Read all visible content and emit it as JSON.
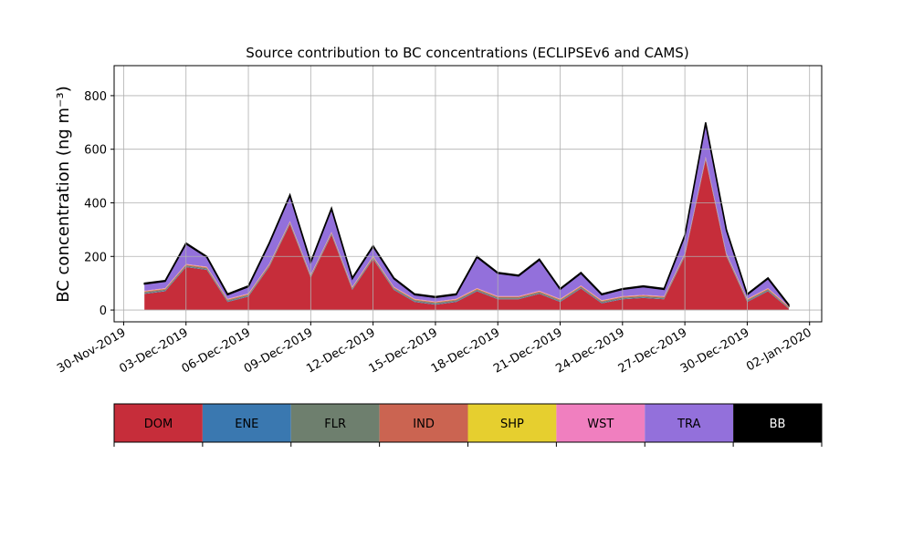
{
  "chart_data": {
    "type": "stacked_area",
    "title": "Source contribution to BC concentrations (ECLIPSEv6 and CAMS)",
    "y_label": "BC concentration (ng m⁻³)",
    "x": [
      "2019-12-01",
      "2019-12-02",
      "2019-12-03",
      "2019-12-04",
      "2019-12-05",
      "2019-12-06",
      "2019-12-07",
      "2019-12-08",
      "2019-12-09",
      "2019-12-10",
      "2019-12-11",
      "2019-12-12",
      "2019-12-13",
      "2019-12-14",
      "2019-12-15",
      "2019-12-16",
      "2019-12-17",
      "2019-12-18",
      "2019-12-19",
      "2019-12-20",
      "2019-12-21",
      "2019-12-22",
      "2019-12-23",
      "2019-12-24",
      "2019-12-25",
      "2019-12-26",
      "2019-12-27",
      "2019-12-28",
      "2019-12-29",
      "2019-12-30",
      "2019-12-31",
      "2020-01-01"
    ],
    "series": [
      {
        "name": "DOM",
        "color": "#c62d3a",
        "values": [
          60,
          70,
          160,
          150,
          30,
          50,
          160,
          320,
          120,
          280,
          75,
          190,
          75,
          30,
          20,
          30,
          70,
          40,
          40,
          60,
          30,
          80,
          25,
          40,
          45,
          40,
          200,
          560,
          200,
          30,
          70,
          5
        ]
      },
      {
        "name": "ENE",
        "color": "#3a78b0",
        "values": [
          2,
          2,
          2,
          2,
          2,
          2,
          2,
          2,
          2,
          2,
          2,
          2,
          2,
          2,
          2,
          2,
          2,
          2,
          2,
          2,
          2,
          2,
          2,
          2,
          2,
          2,
          2,
          2,
          2,
          2,
          2,
          1
        ]
      },
      {
        "name": "FLR",
        "color": "#6e7f6e",
        "values": [
          4,
          4,
          4,
          4,
          4,
          4,
          4,
          4,
          4,
          4,
          4,
          4,
          4,
          4,
          4,
          4,
          4,
          4,
          4,
          4,
          4,
          4,
          4,
          4,
          4,
          4,
          4,
          4,
          4,
          4,
          4,
          3
        ]
      },
      {
        "name": "IND",
        "color": "#cb6451",
        "values": [
          3,
          3,
          3,
          3,
          3,
          3,
          3,
          3,
          3,
          3,
          3,
          3,
          3,
          3,
          3,
          3,
          3,
          3,
          3,
          3,
          3,
          3,
          3,
          3,
          3,
          3,
          3,
          3,
          3,
          3,
          3,
          3
        ]
      },
      {
        "name": "SHP",
        "color": "#e6cf2f",
        "values": [
          1,
          1,
          1,
          1,
          1,
          1,
          1,
          1,
          1,
          1,
          1,
          1,
          1,
          1,
          1,
          1,
          1,
          1,
          1,
          1,
          1,
          1,
          1,
          1,
          1,
          1,
          1,
          1,
          1,
          1,
          1,
          1
        ]
      },
      {
        "name": "WST",
        "color": "#f07fbf",
        "values": [
          2,
          2,
          2,
          2,
          2,
          2,
          2,
          2,
          2,
          2,
          2,
          2,
          2,
          2,
          2,
          2,
          2,
          2,
          2,
          2,
          2,
          2,
          2,
          2,
          2,
          2,
          2,
          2,
          2,
          2,
          2,
          2
        ]
      },
      {
        "name": "TRA",
        "color": "#9370db",
        "values": [
          25,
          25,
          75,
          35,
          15,
          25,
          75,
          95,
          45,
          85,
          30,
          35,
          30,
          15,
          15,
          15,
          115,
          85,
          75,
          115,
          35,
          45,
          20,
          25,
          30,
          25,
          65,
          125,
          85,
          15,
          35,
          2
        ]
      },
      {
        "name": "BB",
        "color": "#000000",
        "values": [
          3,
          3,
          3,
          3,
          3,
          3,
          3,
          3,
          3,
          3,
          3,
          3,
          3,
          3,
          3,
          3,
          3,
          3,
          3,
          3,
          3,
          3,
          3,
          3,
          3,
          3,
          3,
          3,
          3,
          3,
          3,
          3
        ]
      }
    ],
    "xlim": [
      "2019-11-29T13:00:00Z",
      "2020-01-02T14:00:00Z"
    ],
    "xticks": [
      {
        "value": "2019-11-30",
        "label": "30-Nov-2019"
      },
      {
        "value": "2019-12-03",
        "label": "03-Dec-2019"
      },
      {
        "value": "2019-12-06",
        "label": "06-Dec-2019"
      },
      {
        "value": "2019-12-09",
        "label": "09-Dec-2019"
      },
      {
        "value": "2019-12-12",
        "label": "12-Dec-2019"
      },
      {
        "value": "2019-12-15",
        "label": "15-Dec-2019"
      },
      {
        "value": "2019-12-18",
        "label": "18-Dec-2019"
      },
      {
        "value": "2019-12-21",
        "label": "21-Dec-2019"
      },
      {
        "value": "2019-12-24",
        "label": "24-Dec-2019"
      },
      {
        "value": "2019-12-27",
        "label": "27-Dec-2019"
      },
      {
        "value": "2019-12-30",
        "label": "30-Dec-2019"
      },
      {
        "value": "2020-01-02",
        "label": "02-Jan-2020"
      }
    ],
    "ylim": [
      -44,
      912
    ],
    "yticks": [
      0,
      200,
      400,
      600,
      800
    ],
    "grid": true
  }
}
